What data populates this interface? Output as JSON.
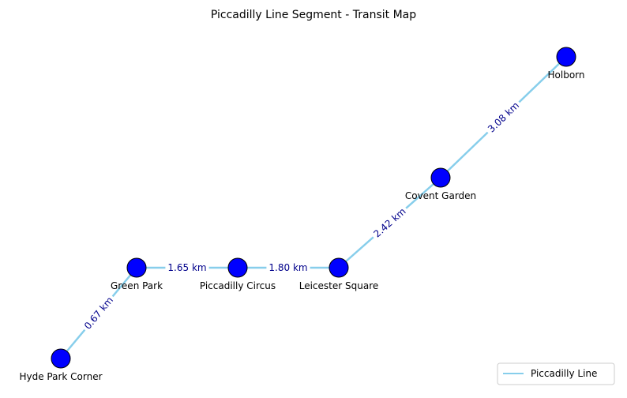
{
  "title": "Piccadilly Line Segment - Transit Map",
  "line": {
    "name": "Piccadilly Line",
    "color": "#87ceeb"
  },
  "station_color": "#0000ff",
  "station_outline_color": "#000000",
  "distance_label_color": "#00008b",
  "stations": [
    {
      "id": "hyde-park-corner",
      "label": "Hyde Park Corner"
    },
    {
      "id": "green-park",
      "label": "Green Park"
    },
    {
      "id": "piccadilly-circus",
      "label": "Piccadilly Circus"
    },
    {
      "id": "leicester-square",
      "label": "Leicester Square"
    },
    {
      "id": "covent-garden",
      "label": "Covent Garden"
    },
    {
      "id": "holborn",
      "label": "Holborn"
    }
  ],
  "segments": [
    {
      "from": 0,
      "to": 1,
      "distance": "0.67 km"
    },
    {
      "from": 1,
      "to": 2,
      "distance": "1.65 km"
    },
    {
      "from": 2,
      "to": 3,
      "distance": "1.80 km"
    },
    {
      "from": 3,
      "to": 4,
      "distance": "2.42 km"
    },
    {
      "from": 4,
      "to": 5,
      "distance": "3.08 km"
    }
  ],
  "legend": {
    "position": "bottom-right",
    "entries": [
      {
        "label": "Piccadilly Line",
        "color": "#87ceeb"
      }
    ]
  }
}
